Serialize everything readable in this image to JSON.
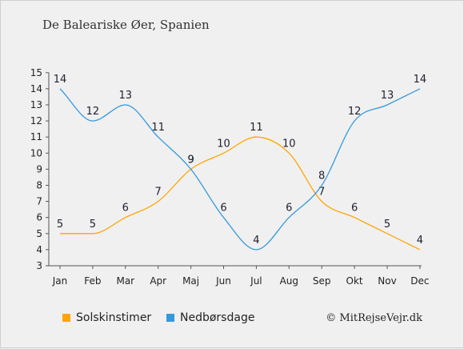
{
  "title": "De Baleariske Øer, Spanien",
  "credit": "© MitRejseVejr.dk",
  "chart_data": {
    "type": "line",
    "categories": [
      "Jan",
      "Feb",
      "Mar",
      "Apr",
      "Maj",
      "Jun",
      "Jul",
      "Aug",
      "Sep",
      "Okt",
      "Nov",
      "Dec"
    ],
    "ylim": [
      3,
      15
    ],
    "yticks": [
      3,
      4,
      5,
      6,
      7,
      8,
      9,
      10,
      11,
      12,
      13,
      14,
      15
    ],
    "series": [
      {
        "name": "Solskinstimer",
        "color": "#FFA500",
        "values": [
          5,
          5,
          6,
          7,
          9,
          10,
          11,
          10,
          7,
          6,
          5,
          4
        ]
      },
      {
        "name": "Nedbørsdage",
        "color": "#3399DD",
        "values": [
          14,
          12,
          13,
          11,
          9,
          6,
          4,
          6,
          8,
          12,
          13,
          14
        ]
      }
    ],
    "legend_position": "bottom-left",
    "grid": false
  }
}
